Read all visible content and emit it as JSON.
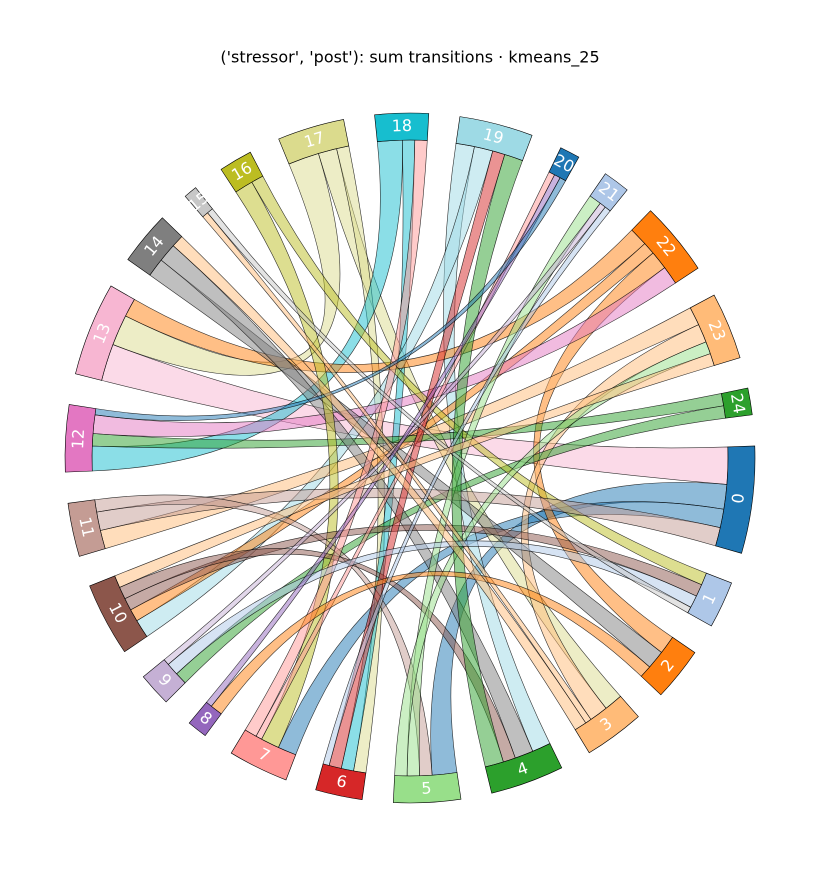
{
  "chart_data": {
    "type": "chord",
    "title": "('stressor', 'post'): sum transitions · kmeans_25",
    "nodes": [
      {
        "label": "0",
        "color": "#1f77b4"
      },
      {
        "label": "1",
        "color": "#aec7e8"
      },
      {
        "label": "2",
        "color": "#ff7f0e"
      },
      {
        "label": "3",
        "color": "#ffbb78"
      },
      {
        "label": "4",
        "color": "#2ca02c"
      },
      {
        "label": "5",
        "color": "#98df8a"
      },
      {
        "label": "6",
        "color": "#d62728"
      },
      {
        "label": "7",
        "color": "#ff9896"
      },
      {
        "label": "8",
        "color": "#9467bd"
      },
      {
        "label": "9",
        "color": "#c5b0d5"
      },
      {
        "label": "10",
        "color": "#8c564b"
      },
      {
        "label": "11",
        "color": "#c49c94"
      },
      {
        "label": "12",
        "color": "#e377c2"
      },
      {
        "label": "13",
        "color": "#f7b6d2"
      },
      {
        "label": "14",
        "color": "#7f7f7f"
      },
      {
        "label": "15",
        "color": "#c7c7c7"
      },
      {
        "label": "16",
        "color": "#bcbd22"
      },
      {
        "label": "17",
        "color": "#dbdb8d"
      },
      {
        "label": "18",
        "color": "#17becf"
      },
      {
        "label": "19",
        "color": "#9edae5"
      },
      {
        "label": "20",
        "color": "#1f77b4"
      },
      {
        "label": "21",
        "color": "#aec7e8"
      },
      {
        "label": "22",
        "color": "#ff7f0e"
      },
      {
        "label": "23",
        "color": "#ffbb78"
      },
      {
        "label": "24",
        "color": "#2ca02c"
      }
    ],
    "links": [
      {
        "source": 13,
        "target": 0,
        "value": 6
      },
      {
        "source": 0,
        "target": 5,
        "value": 4
      },
      {
        "source": 0,
        "target": 7,
        "value": 3
      },
      {
        "source": 17,
        "target": 13,
        "value": 5
      },
      {
        "source": 17,
        "target": 3,
        "value": 3
      },
      {
        "source": 17,
        "target": 6,
        "value": 2
      },
      {
        "source": 18,
        "target": 12,
        "value": 4
      },
      {
        "source": 18,
        "target": 6,
        "value": 2
      },
      {
        "source": 19,
        "target": 4,
        "value": 3
      },
      {
        "source": 19,
        "target": 10,
        "value": 3
      },
      {
        "source": 22,
        "target": 13,
        "value": 3
      },
      {
        "source": 22,
        "target": 10,
        "value": 2
      },
      {
        "source": 22,
        "target": 2,
        "value": 3
      },
      {
        "source": 23,
        "target": 11,
        "value": 3
      },
      {
        "source": 23,
        "target": 3,
        "value": 3
      },
      {
        "source": 24,
        "target": 12,
        "value": 2
      },
      {
        "source": 24,
        "target": 9,
        "value": 2
      },
      {
        "source": 12,
        "target": 22,
        "value": 3
      },
      {
        "source": 14,
        "target": 2,
        "value": 3
      },
      {
        "source": 14,
        "target": 4,
        "value": 3
      },
      {
        "source": 16,
        "target": 7,
        "value": 3
      },
      {
        "source": 16,
        "target": 1,
        "value": 2
      },
      {
        "source": 11,
        "target": 0,
        "value": 3
      },
      {
        "source": 11,
        "target": 5,
        "value": 2
      },
      {
        "source": 10,
        "target": 1,
        "value": 2
      },
      {
        "source": 10,
        "target": 4,
        "value": 2
      },
      {
        "source": 7,
        "target": 20,
        "value": 1
      },
      {
        "source": 7,
        "target": 18,
        "value": 2
      },
      {
        "source": 6,
        "target": 19,
        "value": 2
      },
      {
        "source": 5,
        "target": 21,
        "value": 2
      },
      {
        "source": 5,
        "target": 23,
        "value": 2
      },
      {
        "source": 4,
        "target": 19,
        "value": 3
      },
      {
        "source": 3,
        "target": 15,
        "value": 1
      },
      {
        "source": 2,
        "target": 8,
        "value": 2
      },
      {
        "source": 1,
        "target": 9,
        "value": 2
      },
      {
        "source": 9,
        "target": 21,
        "value": 1
      },
      {
        "source": 8,
        "target": 20,
        "value": 1
      },
      {
        "source": 15,
        "target": 1,
        "value": 1
      },
      {
        "source": 20,
        "target": 12,
        "value": 1
      },
      {
        "source": 21,
        "target": 6,
        "value": 1
      },
      {
        "source": 23,
        "target": 10,
        "value": 2
      },
      {
        "source": 3,
        "target": 14,
        "value": 2
      }
    ]
  }
}
